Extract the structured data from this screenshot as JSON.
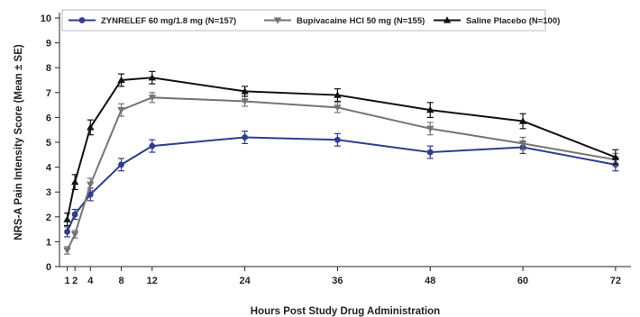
{
  "chart_data": {
    "type": "line",
    "xlabel": "Hours Post Study Drug Administration",
    "ylabel": "NRS-A Pain Intensity Score (Mean ± SE)",
    "x": [
      1,
      2,
      4,
      8,
      12,
      24,
      36,
      48,
      60,
      72
    ],
    "xlim": [
      0,
      74
    ],
    "ylim": [
      0,
      10
    ],
    "yticks": [
      0,
      1,
      2,
      3,
      4,
      5,
      6,
      7,
      8,
      9,
      10
    ],
    "grid": false,
    "legend": "top",
    "series": [
      {
        "name": "ZYNRELEF 60 mg/1.8 mg (N=157)",
        "color": "#2e3d8f",
        "marker": "circle",
        "values": [
          1.4,
          2.1,
          2.9,
          4.1,
          4.85,
          5.2,
          5.1,
          4.6,
          4.8,
          4.1
        ],
        "se": [
          0.2,
          0.2,
          0.25,
          0.25,
          0.25,
          0.25,
          0.25,
          0.25,
          0.25,
          0.25
        ]
      },
      {
        "name": "Bupivacaine HCl 50 mg (N=155)",
        "color": "#777373",
        "marker": "triangle-down",
        "values": [
          0.65,
          1.3,
          3.3,
          6.3,
          6.8,
          6.65,
          6.4,
          5.55,
          4.95,
          4.3
        ],
        "se": [
          0.15,
          0.15,
          0.25,
          0.25,
          0.2,
          0.2,
          0.2,
          0.25,
          0.25,
          0.25
        ]
      },
      {
        "name": "Saline Placebo (N=100)",
        "color": "#111111",
        "marker": "triangle-up",
        "values": [
          1.9,
          3.4,
          5.6,
          7.5,
          7.6,
          7.05,
          6.9,
          6.3,
          5.85,
          4.4
        ],
        "se": [
          0.25,
          0.3,
          0.3,
          0.25,
          0.25,
          0.2,
          0.25,
          0.3,
          0.3,
          0.3
        ]
      }
    ]
  }
}
